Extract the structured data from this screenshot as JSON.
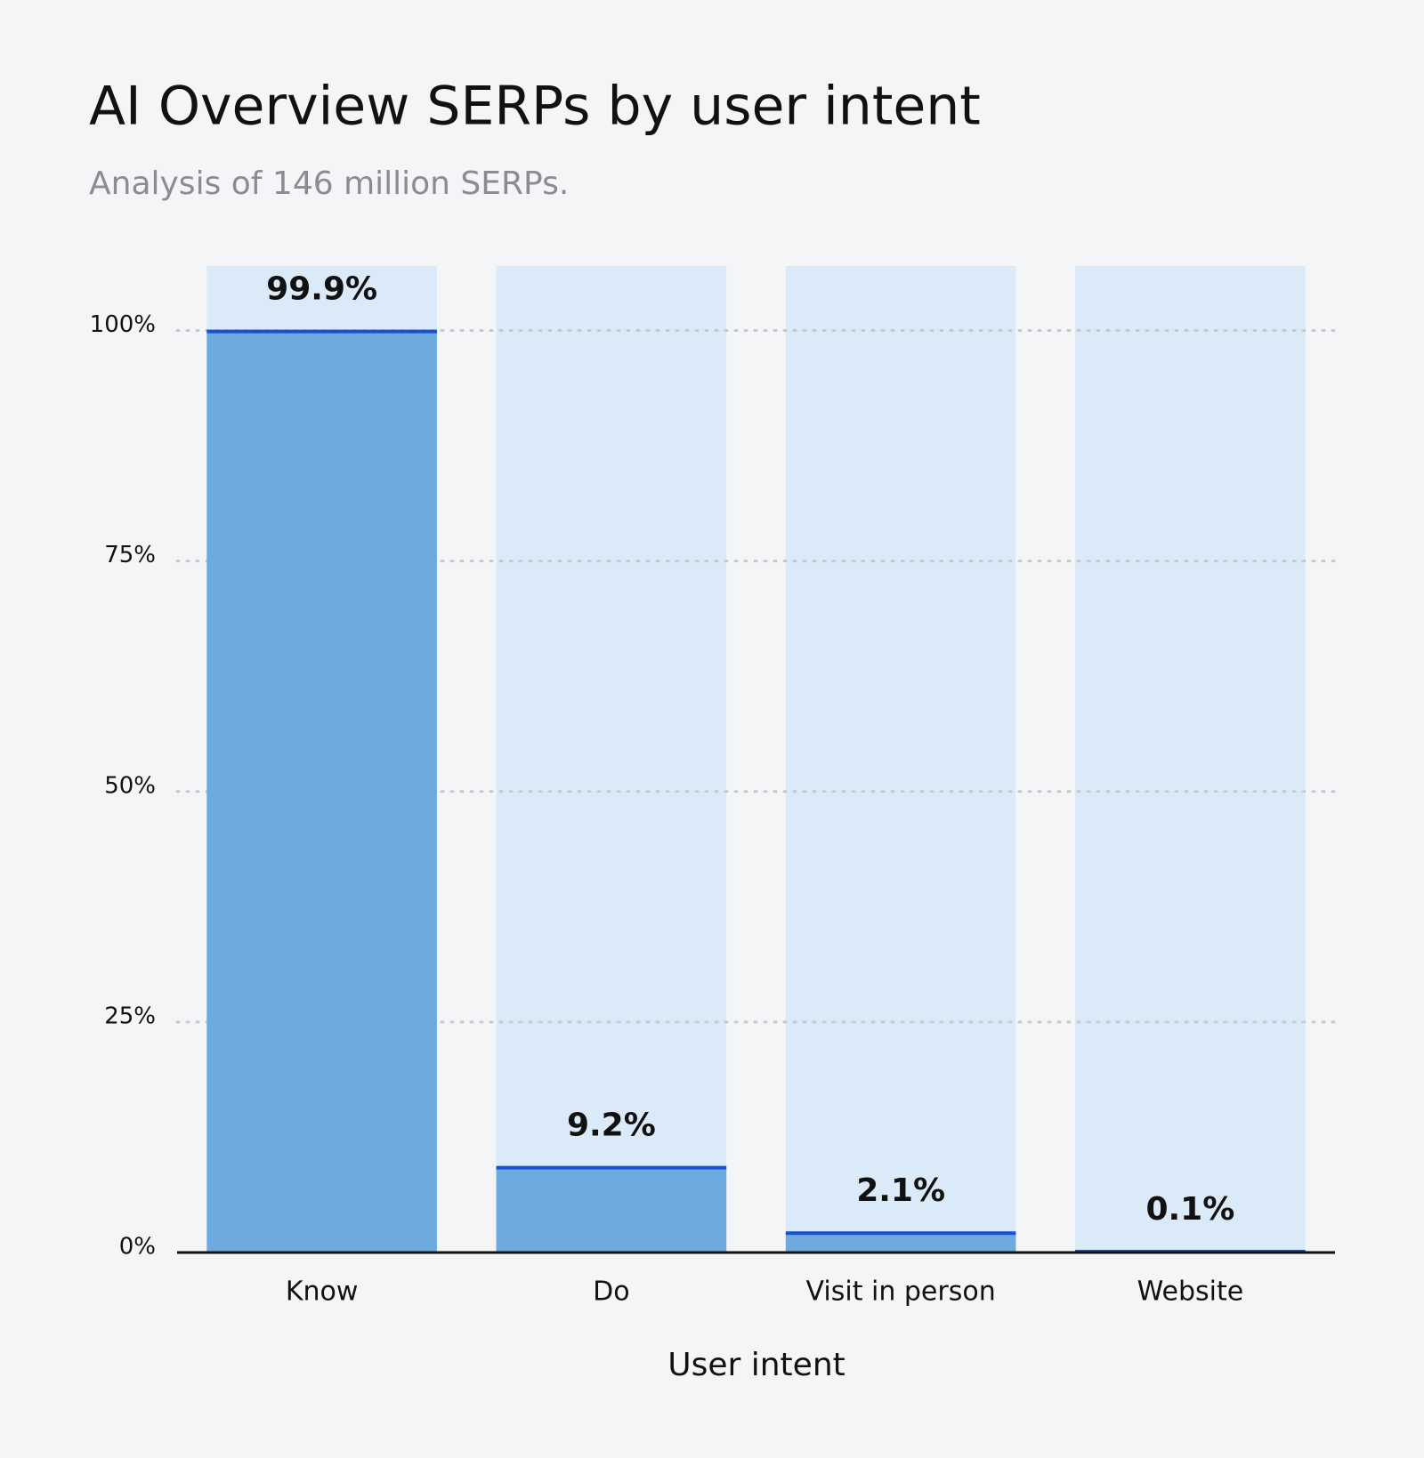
{
  "chart_data": {
    "type": "bar",
    "title": "AI Overview SERPs by user intent",
    "subtitle": "Analysis of 146 million SERPs.",
    "x_label": "User intent",
    "categories": [
      "Know",
      "Do",
      "Visit in person",
      "Website"
    ],
    "values": [
      99.9,
      9.2,
      2.1,
      0.1
    ],
    "value_labels": [
      "99.9%",
      "9.2%",
      "2.1%",
      "0.1%"
    ],
    "color": "#6caae0",
    "edge_color": "#1a4fd0",
    "track_color": "#dbeaf8",
    "ylim": [
      0,
      107
    ],
    "yticks": [
      {
        "value": 0,
        "label": "0%"
      },
      {
        "value": 25,
        "label": "25%"
      },
      {
        "value": 50,
        "label": "50%"
      },
      {
        "value": 75,
        "label": "75%"
      },
      {
        "value": 100,
        "label": "100%"
      }
    ],
    "grid": true
  }
}
